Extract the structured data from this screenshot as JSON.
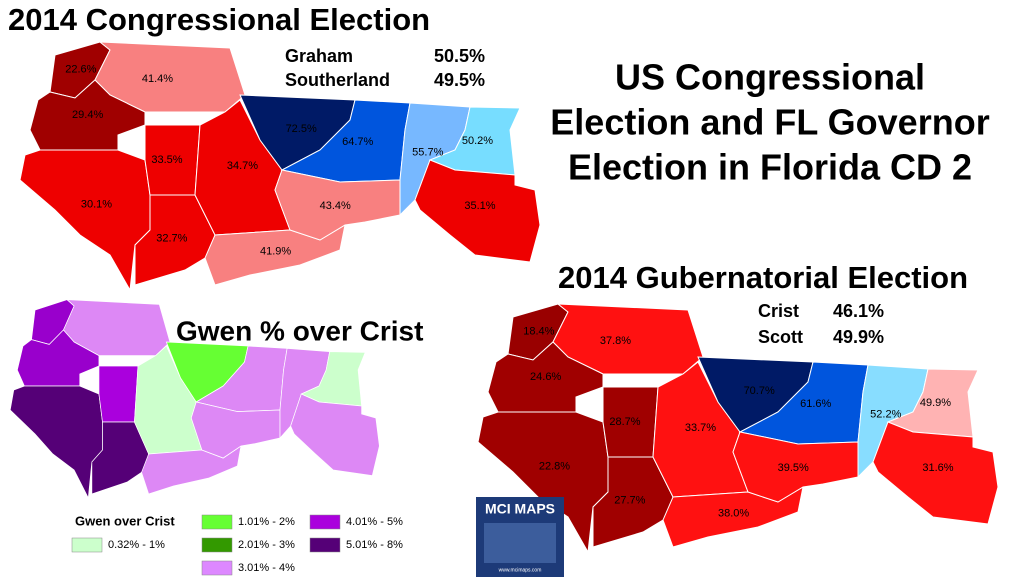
{
  "title_lines": [
    "US Congressional",
    "Election and FL Governor",
    "Election in Florida CD 2"
  ],
  "congressional": {
    "title": "2014 Congressional Election",
    "results": [
      {
        "name": "Graham",
        "pct": "50.5%"
      },
      {
        "name": "Southerland",
        "pct": "49.5%"
      }
    ],
    "counties": [
      {
        "label": "22.6%",
        "color": "#a00000"
      },
      {
        "label": "41.4%",
        "color": "#f88080"
      },
      {
        "label": "29.4%",
        "color": "#a00000"
      },
      {
        "label": "30.1%",
        "color": "#ee0000"
      },
      {
        "label": "33.5%",
        "color": "#ee0000"
      },
      {
        "label": "32.7%",
        "color": "#ee0000"
      },
      {
        "label": "34.7%",
        "color": "#ee0000"
      },
      {
        "label": "41.9%",
        "color": "#f88080"
      },
      {
        "label": "72.5%",
        "color": "#001a66"
      },
      {
        "label": "64.7%",
        "color": "#0055dd"
      },
      {
        "label": "43.4%",
        "color": "#f88080"
      },
      {
        "label": "55.7%",
        "color": "#77b8ff"
      },
      {
        "label": "50.2%",
        "color": "#77ddff"
      },
      {
        "label": "35.1%",
        "color": "#ee0000"
      }
    ]
  },
  "gubernatorial": {
    "title": "2014 Gubernatorial Election",
    "results": [
      {
        "name": "Crist",
        "pct": "46.1%"
      },
      {
        "name": "Scott",
        "pct": "49.9%"
      }
    ],
    "counties": [
      {
        "label": "18.4%",
        "color": "#990000"
      },
      {
        "label": "37.8%",
        "color": "#ff1111"
      },
      {
        "label": "24.6%",
        "color": "#a00000"
      },
      {
        "label": "22.8%",
        "color": "#a00000"
      },
      {
        "label": "28.7%",
        "color": "#a00000"
      },
      {
        "label": "27.7%",
        "color": "#a00000"
      },
      {
        "label": "33.7%",
        "color": "#ff1111"
      },
      {
        "label": "38.0%",
        "color": "#ff1111"
      },
      {
        "label": "70.7%",
        "color": "#001a66"
      },
      {
        "label": "61.6%",
        "color": "#0055dd"
      },
      {
        "label": "39.5%",
        "color": "#ff1111"
      },
      {
        "label": "52.2%",
        "color": "#88ddff"
      },
      {
        "label": "49.9%",
        "color": "#ffb3b3"
      },
      {
        "label": "31.6%",
        "color": "#ff1111"
      }
    ]
  },
  "difference": {
    "title": "Gwen % over Crist",
    "counties": [
      "#9900cc",
      "#dd88f5",
      "#9900cc",
      "#550077",
      "#aa00dd",
      "#550077",
      "#ccffcc",
      "#dd88f5",
      "#66ff33",
      "#dd88f5",
      "#dd88f5",
      "#dd88f5",
      "#ccffcc",
      "#dd88f5"
    ],
    "legend": {
      "title": "Gwen over Crist",
      "items": [
        {
          "label": "0.32% - 1%",
          "color": "#ccffcc"
        },
        {
          "label": "1.01% - 2%",
          "color": "#66ff33"
        },
        {
          "label": "2.01% - 3%",
          "color": "#339900"
        },
        {
          "label": "3.01% - 4%",
          "color": "#dd88ff"
        },
        {
          "label": "4.01% - 5%",
          "color": "#aa00dd"
        },
        {
          "label": "5.01% - 8%",
          "color": "#550077"
        }
      ]
    }
  },
  "logo": {
    "name": "MCI MAPS",
    "url": "www.mcimaps.com"
  }
}
